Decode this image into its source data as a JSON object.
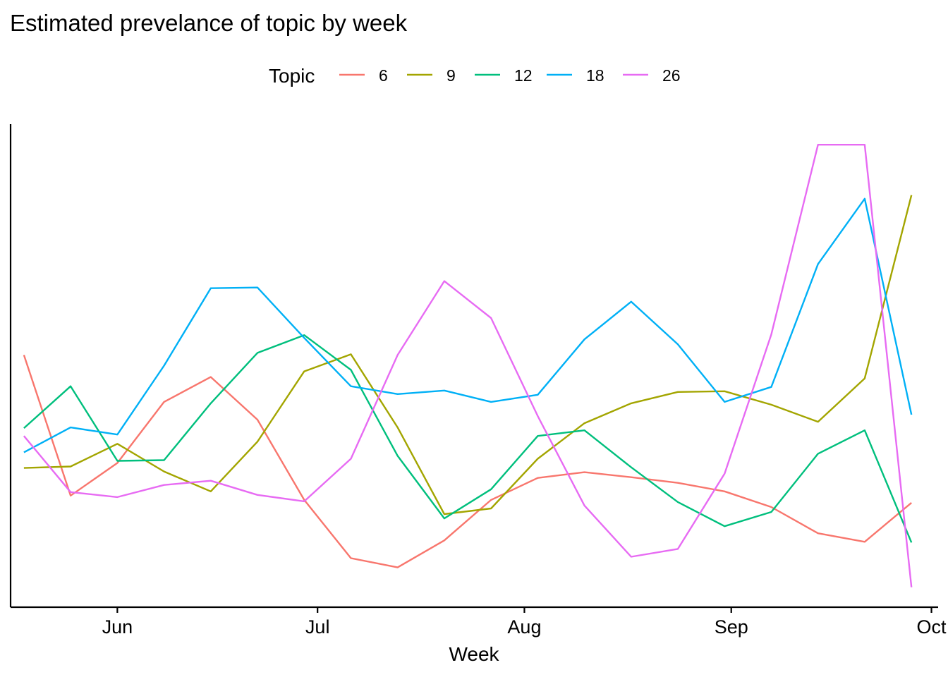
{
  "chart_data": {
    "type": "line",
    "title": "Estimated prevelance of topic by week",
    "xlabel": "Week",
    "ylabel": "",
    "legend": {
      "title": "Topic",
      "position": "top"
    },
    "grid": false,
    "x": [
      "2020-05-18",
      "2020-05-25",
      "2020-06-01",
      "2020-06-08",
      "2020-06-15",
      "2020-06-22",
      "2020-06-29",
      "2020-07-06",
      "2020-07-13",
      "2020-07-20",
      "2020-07-27",
      "2020-08-03",
      "2020-08-10",
      "2020-08-17",
      "2020-08-24",
      "2020-08-31",
      "2020-09-07",
      "2020-09-14",
      "2020-09-21",
      "2020-09-28"
    ],
    "xlim": [
      "2020-05-16",
      "2020-10-02"
    ],
    "x_ticks": [
      {
        "label": "Jun",
        "date": "2020-06-01"
      },
      {
        "label": "Jul",
        "date": "2020-07-01"
      },
      {
        "label": "Aug",
        "date": "2020-08-01"
      },
      {
        "label": "Sep",
        "date": "2020-09-01"
      },
      {
        "label": "Oct",
        "date": "2020-10-01"
      }
    ],
    "ylim": [
      0,
      0.68
    ],
    "series": [
      {
        "name": "6",
        "color": "#F8766D",
        "values": [
          0.355,
          0.157,
          0.203,
          0.289,
          0.324,
          0.264,
          0.151,
          0.069,
          0.056,
          0.094,
          0.151,
          0.182,
          0.19,
          0.183,
          0.175,
          0.163,
          0.141,
          0.104,
          0.092,
          0.147
        ]
      },
      {
        "name": "9",
        "color": "#A3A500",
        "values": [
          0.196,
          0.198,
          0.23,
          0.191,
          0.163,
          0.233,
          0.332,
          0.356,
          0.253,
          0.131,
          0.139,
          0.209,
          0.259,
          0.287,
          0.303,
          0.304,
          0.285,
          0.261,
          0.322,
          0.58
        ]
      },
      {
        "name": "12",
        "color": "#00BF7D",
        "values": [
          0.252,
          0.311,
          0.206,
          0.207,
          0.287,
          0.358,
          0.383,
          0.334,
          0.213,
          0.125,
          0.166,
          0.241,
          0.249,
          0.197,
          0.148,
          0.114,
          0.134,
          0.216,
          0.249,
          0.091
        ]
      },
      {
        "name": "18",
        "color": "#00B0F6",
        "values": [
          0.218,
          0.253,
          0.243,
          0.34,
          0.449,
          0.45,
          0.379,
          0.311,
          0.3,
          0.305,
          0.289,
          0.299,
          0.377,
          0.43,
          0.37,
          0.289,
          0.31,
          0.483,
          0.575,
          0.271
        ]
      },
      {
        "name": "26",
        "color": "#E76BF3",
        "values": [
          0.241,
          0.162,
          0.155,
          0.172,
          0.178,
          0.158,
          0.149,
          0.209,
          0.355,
          0.459,
          0.407,
          0.269,
          0.143,
          0.071,
          0.082,
          0.188,
          0.384,
          0.651,
          0.651,
          0.028
        ]
      }
    ]
  }
}
